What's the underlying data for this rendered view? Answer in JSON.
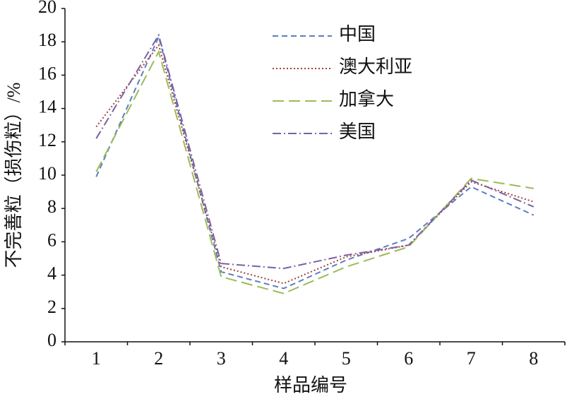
{
  "chart_data": {
    "type": "line",
    "xlabel": "样品编号",
    "ylabel": "不完善粒（损伤粒）/%",
    "categories": [
      "1",
      "2",
      "3",
      "4",
      "5",
      "6",
      "7",
      "8"
    ],
    "series": [
      {
        "name": "中国",
        "color": "#5b7fbf",
        "dash": "8 5",
        "values": [
          9.9,
          18.3,
          4.2,
          3.2,
          4.9,
          6.2,
          9.3,
          7.6
        ]
      },
      {
        "name": "澳大利亚",
        "color": "#a0413c",
        "dash": "2 3",
        "values": [
          12.9,
          17.8,
          4.5,
          3.5,
          5.1,
          5.8,
          9.6,
          8.4
        ]
      },
      {
        "name": "加拿大",
        "color": "#9bbb59",
        "dash": "16 7",
        "values": [
          10.2,
          17.4,
          3.9,
          2.9,
          4.5,
          5.7,
          9.8,
          9.2
        ]
      },
      {
        "name": "美国",
        "color": "#7a62a0",
        "dash": "12 4 2 4",
        "values": [
          12.2,
          18.4,
          4.7,
          4.4,
          5.2,
          5.8,
          9.7,
          8.1
        ]
      }
    ],
    "ylim": [
      0,
      20
    ],
    "yticks": [
      0,
      2,
      4,
      6,
      8,
      10,
      12,
      14,
      16,
      18,
      20
    ],
    "legend": "upper center"
  }
}
